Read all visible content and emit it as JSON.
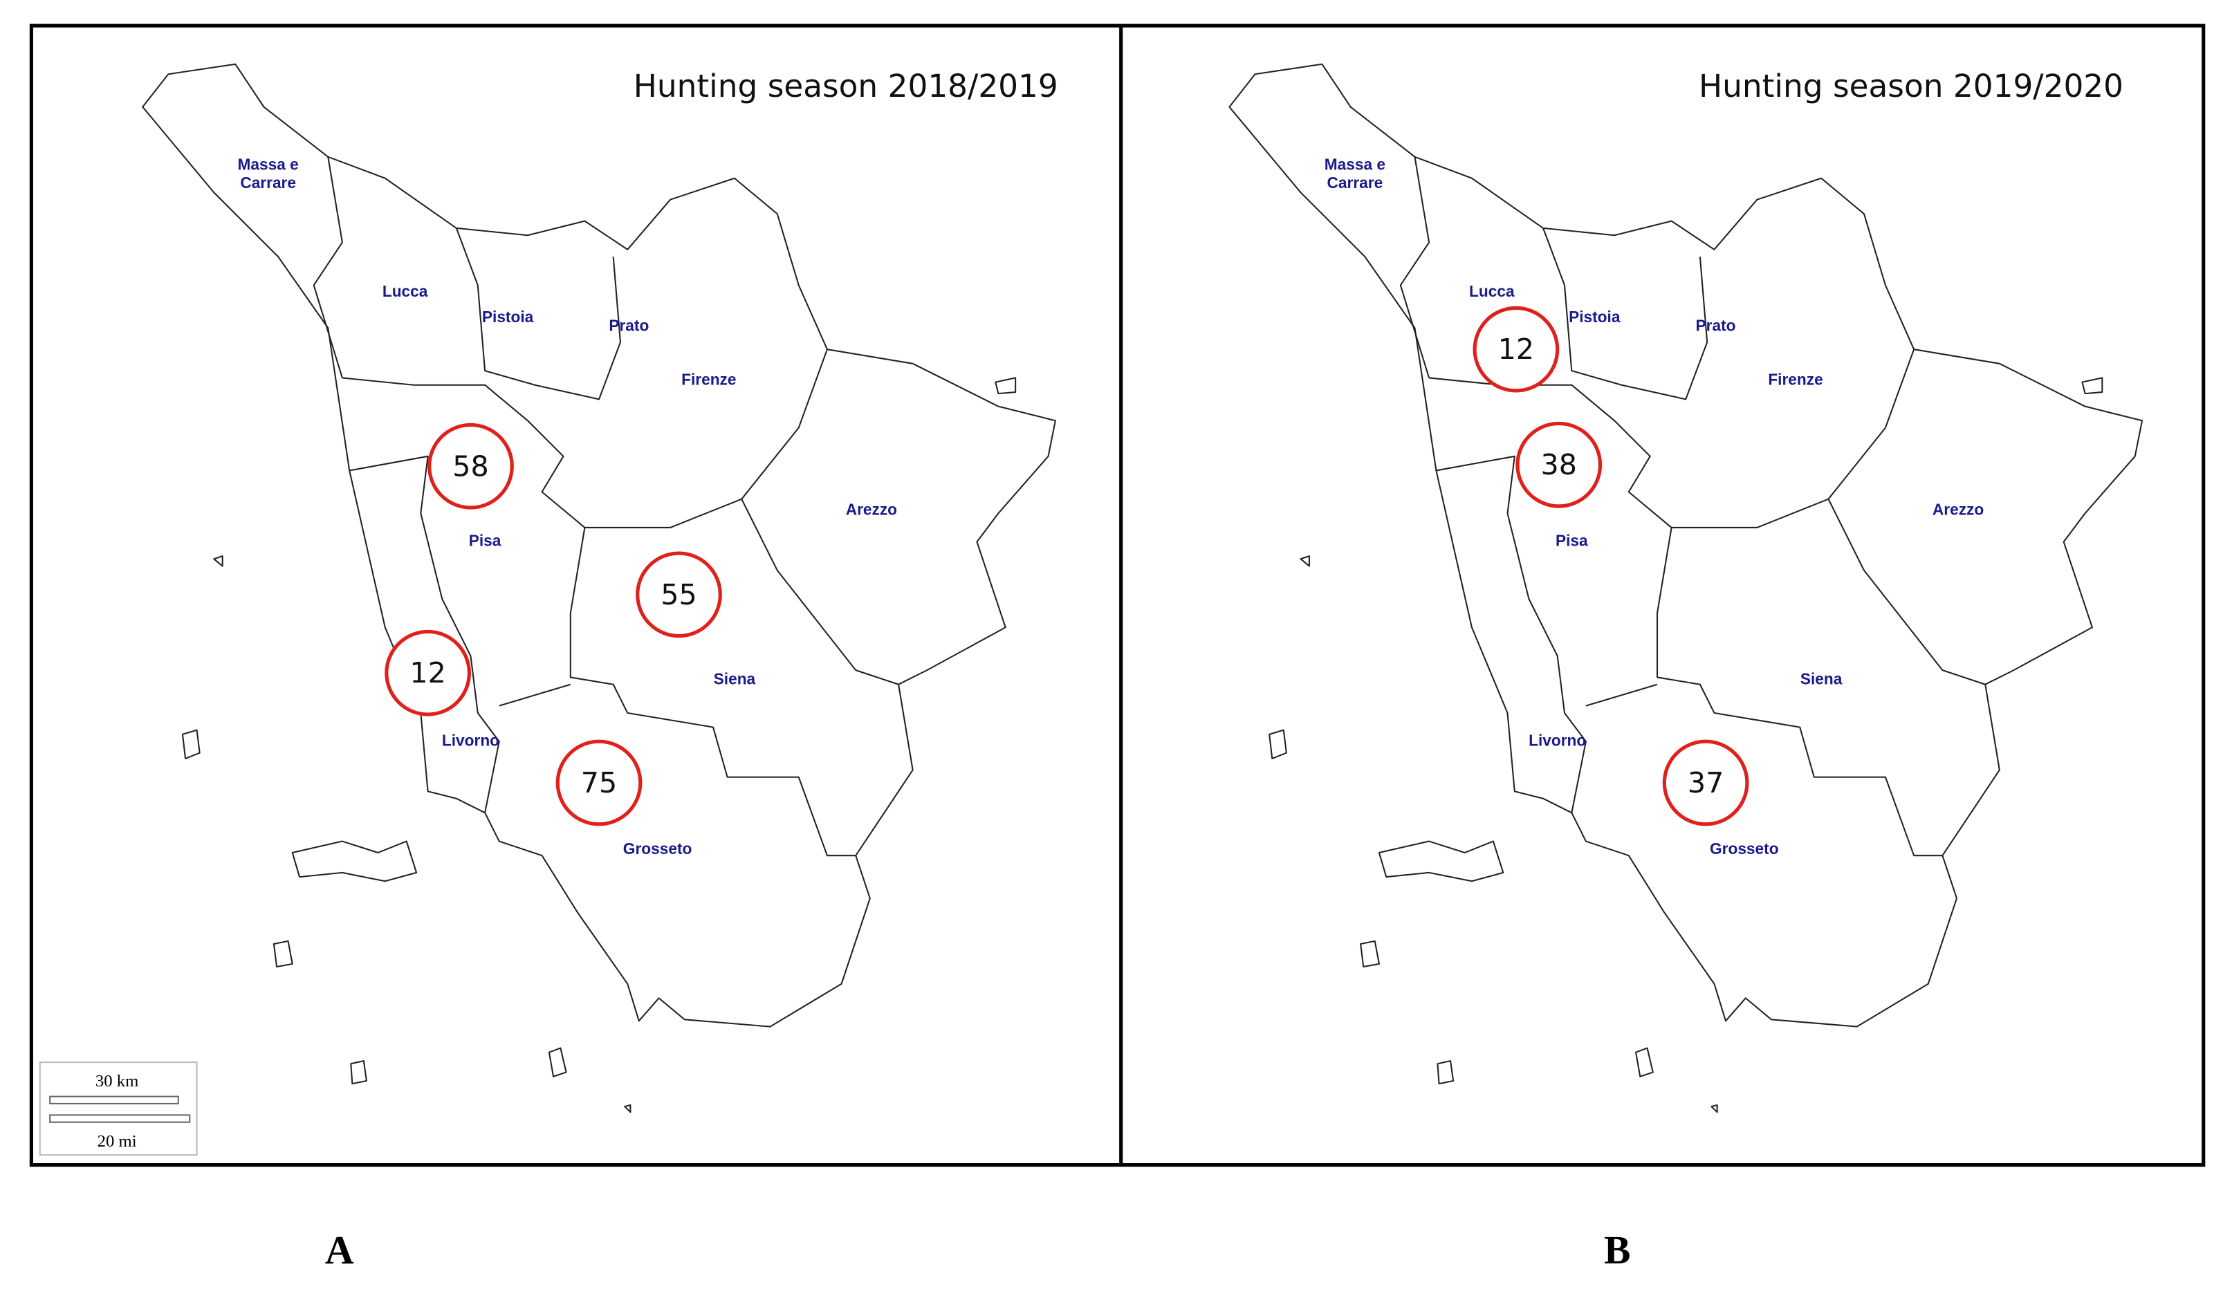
{
  "panels": [
    {
      "title": "Hunting season 2018/2019",
      "letter": "A",
      "provinces": [
        {
          "lines": [
            "Massa e",
            "Carrare"
          ]
        },
        {
          "lines": [
            "Lucca"
          ]
        },
        {
          "lines": [
            "Pistoia"
          ]
        },
        {
          "lines": [
            "Prato"
          ]
        },
        {
          "lines": [
            "Firenze"
          ]
        },
        {
          "lines": [
            "Arezzo"
          ]
        },
        {
          "lines": [
            "Pisa"
          ]
        },
        {
          "lines": [
            "Siena"
          ]
        },
        {
          "lines": [
            "Livorno"
          ]
        },
        {
          "lines": [
            "Grosseto"
          ]
        }
      ],
      "counts": [
        58,
        55,
        12,
        75
      ]
    },
    {
      "title": "Hunting season 2019/2020",
      "letter": "B",
      "provinces": [
        {
          "lines": [
            "Massa e",
            "Carrare"
          ]
        },
        {
          "lines": [
            "Lucca"
          ]
        },
        {
          "lines": [
            "Pistoia"
          ]
        },
        {
          "lines": [
            "Prato"
          ]
        },
        {
          "lines": [
            "Firenze"
          ]
        },
        {
          "lines": [
            "Arezzo"
          ]
        },
        {
          "lines": [
            "Pisa"
          ]
        },
        {
          "lines": [
            "Siena"
          ]
        },
        {
          "lines": [
            "Livorno"
          ]
        },
        {
          "lines": [
            "Grosseto"
          ]
        }
      ],
      "counts": [
        12,
        38,
        37
      ]
    }
  ],
  "scale_bar": {
    "km": "30 km",
    "mi": "20 mi"
  }
}
